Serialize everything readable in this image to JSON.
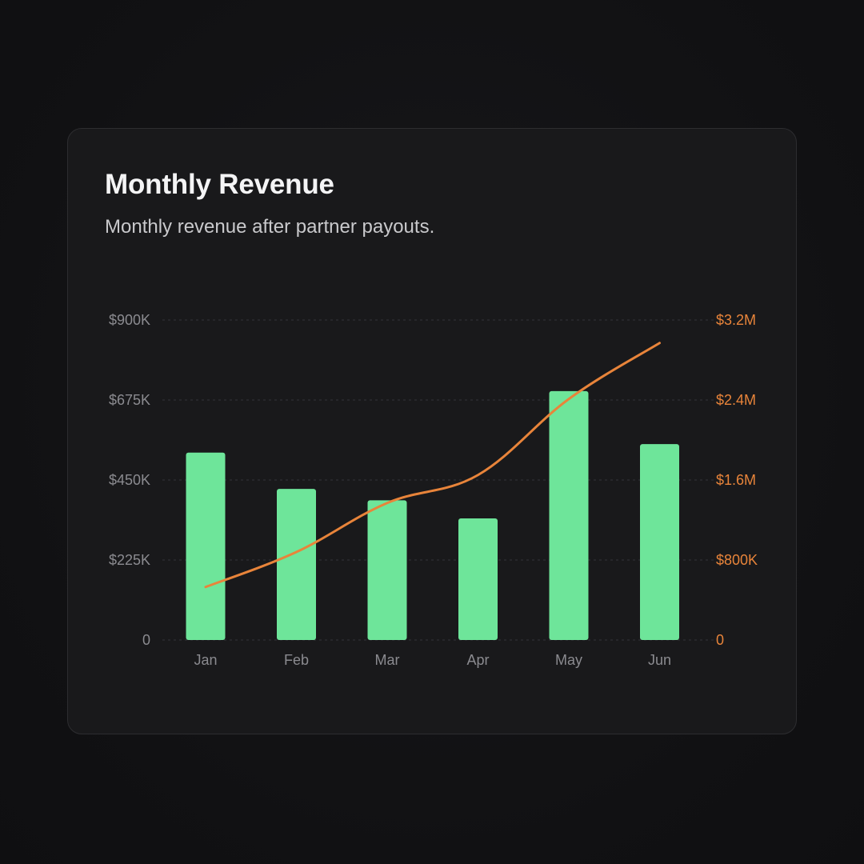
{
  "card": {
    "title": "Monthly Revenue",
    "subtitle": "Monthly revenue after partner payouts."
  },
  "chart_data": {
    "type": "bar",
    "title": "Monthly Revenue",
    "subtitle": "Monthly revenue after partner payouts.",
    "categories": [
      "Jan",
      "Feb",
      "Mar",
      "Apr",
      "May",
      "Jun"
    ],
    "series": [
      {
        "type": "bar",
        "axis": "left",
        "color": "#6ee59a",
        "values": [
          527000,
          425000,
          393000,
          342000,
          700000,
          551000
        ]
      },
      {
        "type": "line",
        "axis": "right",
        "color": "#e8843a",
        "values": [
          530000,
          880000,
          1370000,
          1650000,
          2410000,
          2970000
        ]
      }
    ],
    "y_left": {
      "lim": [
        0,
        900000
      ],
      "ticks": [
        0,
        225000,
        450000,
        675000,
        900000
      ],
      "tick_labels": [
        "0",
        "$225K",
        "$450K",
        "$675K",
        "$900K"
      ]
    },
    "y_right": {
      "lim": [
        0,
        3200000
      ],
      "ticks": [
        0,
        800000,
        1600000,
        2400000,
        3200000
      ],
      "tick_labels": [
        "0",
        "$800K",
        "$1.6M",
        "$2.4M",
        "$3.2M"
      ],
      "color": "#e8843a"
    },
    "grid": true,
    "legend": "none"
  }
}
